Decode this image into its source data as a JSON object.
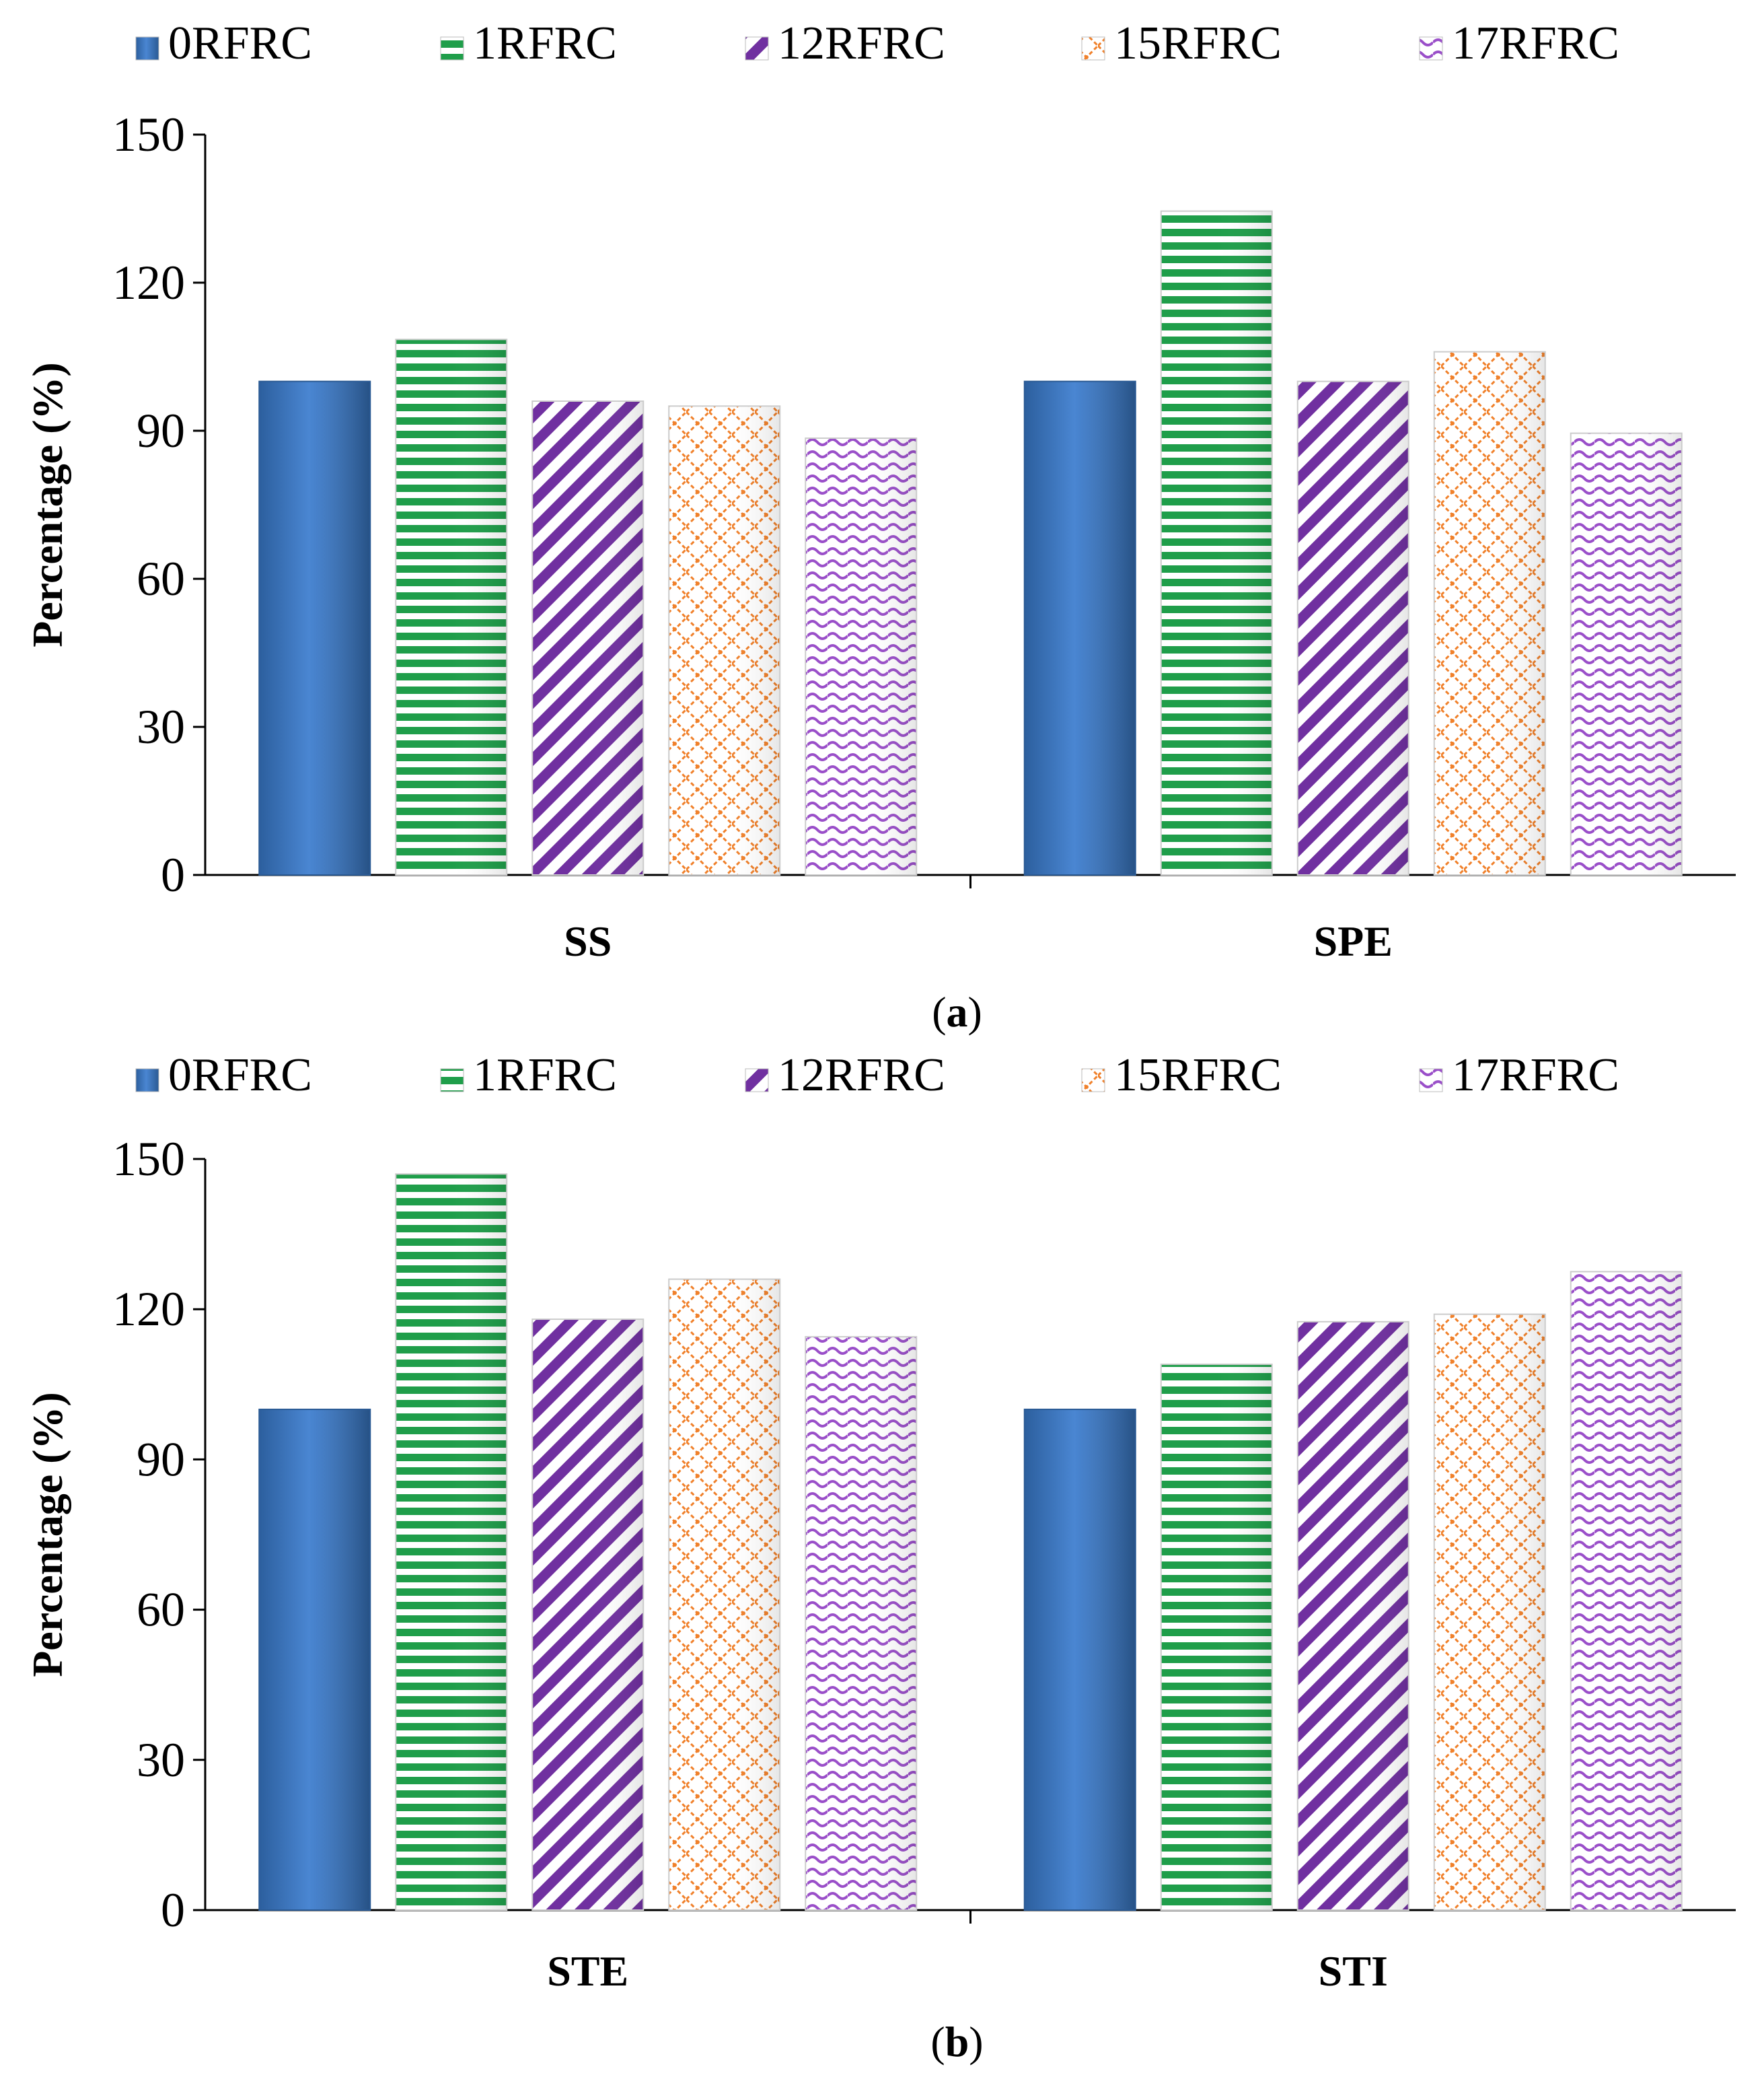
{
  "chart_data": [
    {
      "type": "bar",
      "caption": "a",
      "categories": [
        "SS",
        "SPE"
      ],
      "ylabel": "Percentage (%)",
      "ylim": [
        0,
        150
      ],
      "yticks": [
        0,
        30,
        60,
        90,
        120,
        150
      ],
      "grid": false,
      "legend": "top",
      "series": [
        {
          "name": "0RFRC",
          "values": [
            100,
            100
          ]
        },
        {
          "name": "1RFRC",
          "values": [
            108.5,
            134.5
          ]
        },
        {
          "name": "12RFRC",
          "values": [
            96,
            100
          ]
        },
        {
          "name": "15RFRC",
          "values": [
            95,
            106
          ]
        },
        {
          "name": "17RFRC",
          "values": [
            88.5,
            89.5
          ]
        }
      ]
    },
    {
      "type": "bar",
      "caption": "b",
      "categories": [
        "STE",
        "STI"
      ],
      "ylabel": "Percentage (%)",
      "ylim": [
        0,
        150
      ],
      "yticks": [
        0,
        30,
        60,
        90,
        120,
        150
      ],
      "grid": false,
      "legend": "top",
      "series": [
        {
          "name": "0RFRC",
          "values": [
            100,
            100
          ]
        },
        {
          "name": "1RFRC",
          "values": [
            147,
            109
          ]
        },
        {
          "name": "12RFRC",
          "values": [
            118,
            117.5
          ]
        },
        {
          "name": "15RFRC",
          "values": [
            126,
            119
          ]
        },
        {
          "name": "17RFRC",
          "values": [
            114.5,
            127.5
          ]
        }
      ]
    }
  ],
  "colors": {
    "0RFRC": "#3e7bcf",
    "1RFRC": "#1f9e4a",
    "12RFRC": "#7030a0",
    "15RFRC": "#f0802a",
    "17RFRC": "#9a4fc9"
  }
}
